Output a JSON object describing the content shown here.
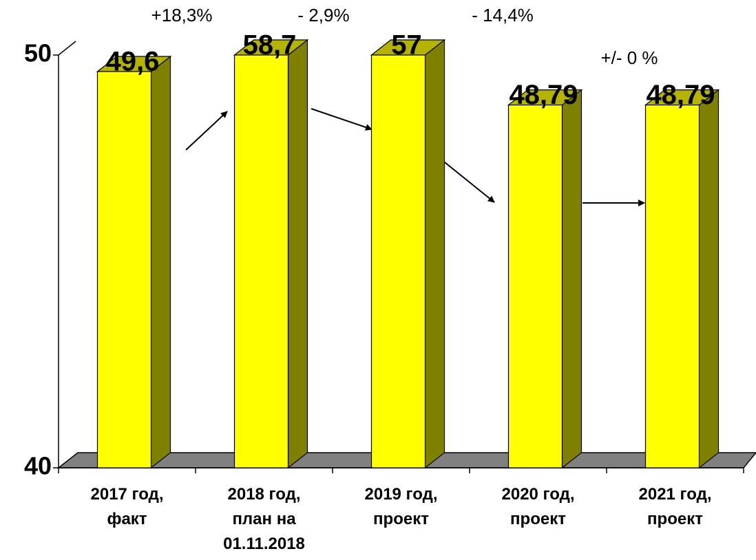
{
  "chart_data": {
    "type": "bar3d",
    "categories": [
      "2017 год,\nфакт",
      "2018 год,\nплан на\n01.11.2018",
      "2019 год,\nпроект",
      "2020 год,\nпроект",
      "2021 год,\nпроект"
    ],
    "values": [
      49.6,
      58.7,
      57,
      48.79,
      48.79
    ],
    "value_labels": [
      "49,6",
      "58,7",
      "57",
      "48,79",
      "48,79"
    ],
    "color": "#ffff00",
    "ylim": [
      40,
      50
    ],
    "yticks": [
      40,
      50
    ],
    "annotations": [
      "+18,3%",
      "- 2,9%",
      "- 14,4%",
      "+/- 0 %"
    ]
  }
}
